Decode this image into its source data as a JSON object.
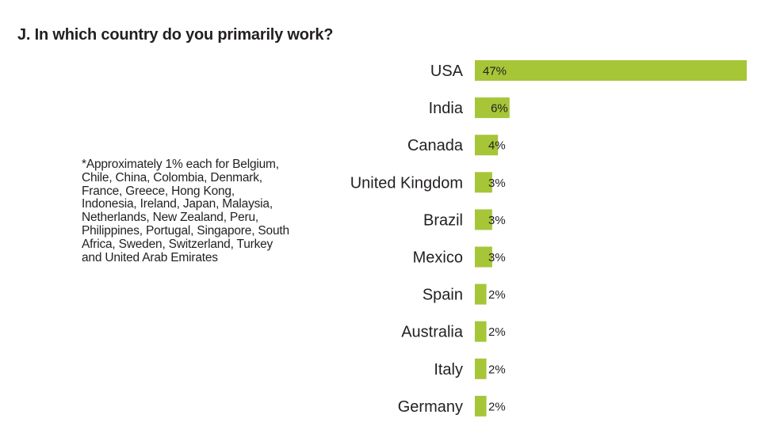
{
  "title": "J. In which country do you primarily work?",
  "footnote": "*Approximately 1% each for Belgium, Chile, China, Colombia, Denmark, France, Greece, Hong Kong, Indonesia, Ireland, Japan, Malaysia, Netherlands, New Zealand, Peru, Philippines, Portugal, Singapore, South Africa, Sweden, Switzerland, Turkey and United Arab Emirates",
  "chart_data": {
    "type": "bar",
    "orientation": "horizontal",
    "title": "J. In which country do you primarily work?",
    "categories": [
      "USA",
      "India",
      "Canada",
      "United Kingdom",
      "Brazil",
      "Mexico",
      "Spain",
      "Australia",
      "Italy",
      "Germany"
    ],
    "values": [
      47,
      6,
      4,
      3,
      3,
      3,
      2,
      2,
      2,
      2
    ],
    "value_labels": [
      "47%",
      "6%",
      "4%",
      "3%",
      "3%",
      "3%",
      "2%",
      "2%",
      "2%",
      "2%"
    ],
    "unit": "%",
    "bar_color": "#a6c638",
    "xlim": [
      0,
      47
    ],
    "grid": false,
    "legend": "none"
  }
}
